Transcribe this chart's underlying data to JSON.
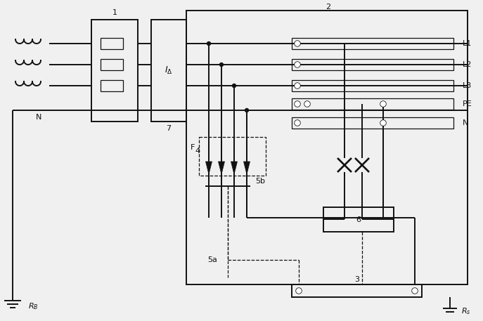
{
  "bg_color": "#f0f0f0",
  "line_color": "#111111",
  "lw": 1.4,
  "tlw": 0.9,
  "fig_w": 6.87,
  "fig_h": 4.57,
  "dpi": 100,
  "labels": {
    "N_left": "N",
    "label1": "1",
    "label2": "2",
    "label3": "3",
    "label4": "4",
    "label5a": "5a",
    "label5b": "5b",
    "label6": "6",
    "label7": "7",
    "labelF": "F",
    "L1": "L1",
    "L2": "L2",
    "L3": "L3",
    "PE": "PE",
    "N": "N",
    "RB": "$R_B$",
    "Rs": "$R_s$",
    "Idelta": "$I_{\\Delta}$"
  }
}
